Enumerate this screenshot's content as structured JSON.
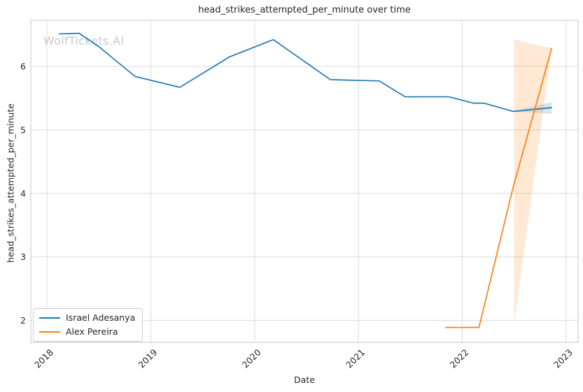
{
  "chart_data": {
    "type": "line",
    "title": "head_strikes_attempted_per_minute over time",
    "xlabel": "Date",
    "ylabel": "head_strikes_attempted_per_minute",
    "watermark": "WolfTickets.AI",
    "grid": true,
    "legend_position": "lower left",
    "x_axis": {
      "ticks": [
        2018,
        2019,
        2020,
        2021,
        2022,
        2023
      ],
      "tick_labels": [
        "2018",
        "2019",
        "2020",
        "2021",
        "2022",
        "2023"
      ],
      "range": [
        2017.845,
        2023.115
      ]
    },
    "y_axis": {
      "ticks": [
        2,
        3,
        4,
        5,
        6
      ],
      "tick_labels": [
        "2",
        "3",
        "4",
        "5",
        "6"
      ],
      "range": [
        1.655,
        6.725
      ]
    },
    "series": [
      {
        "name": "Israel Adesanya",
        "color": "#1f77b4",
        "points": [
          {
            "x": 2018.12,
            "y": 6.51
          },
          {
            "x": 2018.31,
            "y": 6.52
          },
          {
            "x": 2018.5,
            "y": 6.31
          },
          {
            "x": 2018.85,
            "y": 5.84
          },
          {
            "x": 2019.28,
            "y": 5.67
          },
          {
            "x": 2019.76,
            "y": 6.15
          },
          {
            "x": 2020.18,
            "y": 6.42
          },
          {
            "x": 2020.73,
            "y": 5.79
          },
          {
            "x": 2021.2,
            "y": 5.77
          },
          {
            "x": 2021.45,
            "y": 5.52
          },
          {
            "x": 2021.87,
            "y": 5.52
          },
          {
            "x": 2022.11,
            "y": 5.42
          },
          {
            "x": 2022.21,
            "y": 5.42
          },
          {
            "x": 2022.49,
            "y": 5.29
          },
          {
            "x": 2022.86,
            "y": 5.35
          }
        ],
        "ci": {
          "x": [
            2022.49,
            2022.86
          ],
          "upper": [
            5.29,
            5.44
          ],
          "lower": [
            5.29,
            5.25
          ]
        }
      },
      {
        "name": "Alex Pereira",
        "color": "#ff7f0e",
        "points": [
          {
            "x": 2021.84,
            "y": 1.89
          },
          {
            "x": 2022.16,
            "y": 1.89
          },
          {
            "x": 2022.49,
            "y": 4.1
          },
          {
            "x": 2022.86,
            "y": 6.28
          }
        ],
        "ci": {
          "x": [
            2022.5,
            2022.86
          ],
          "upper": [
            6.42,
            6.28
          ],
          "lower": [
            1.95,
            6.28
          ]
        }
      }
    ],
    "styles": {
      "grid_color": "#dadada",
      "frame_color": "#cfcfcf",
      "text_color": "#262626",
      "watermark_color": "#c9c9c9",
      "ci_opacity": 0.18,
      "line_width": 1.7
    }
  }
}
